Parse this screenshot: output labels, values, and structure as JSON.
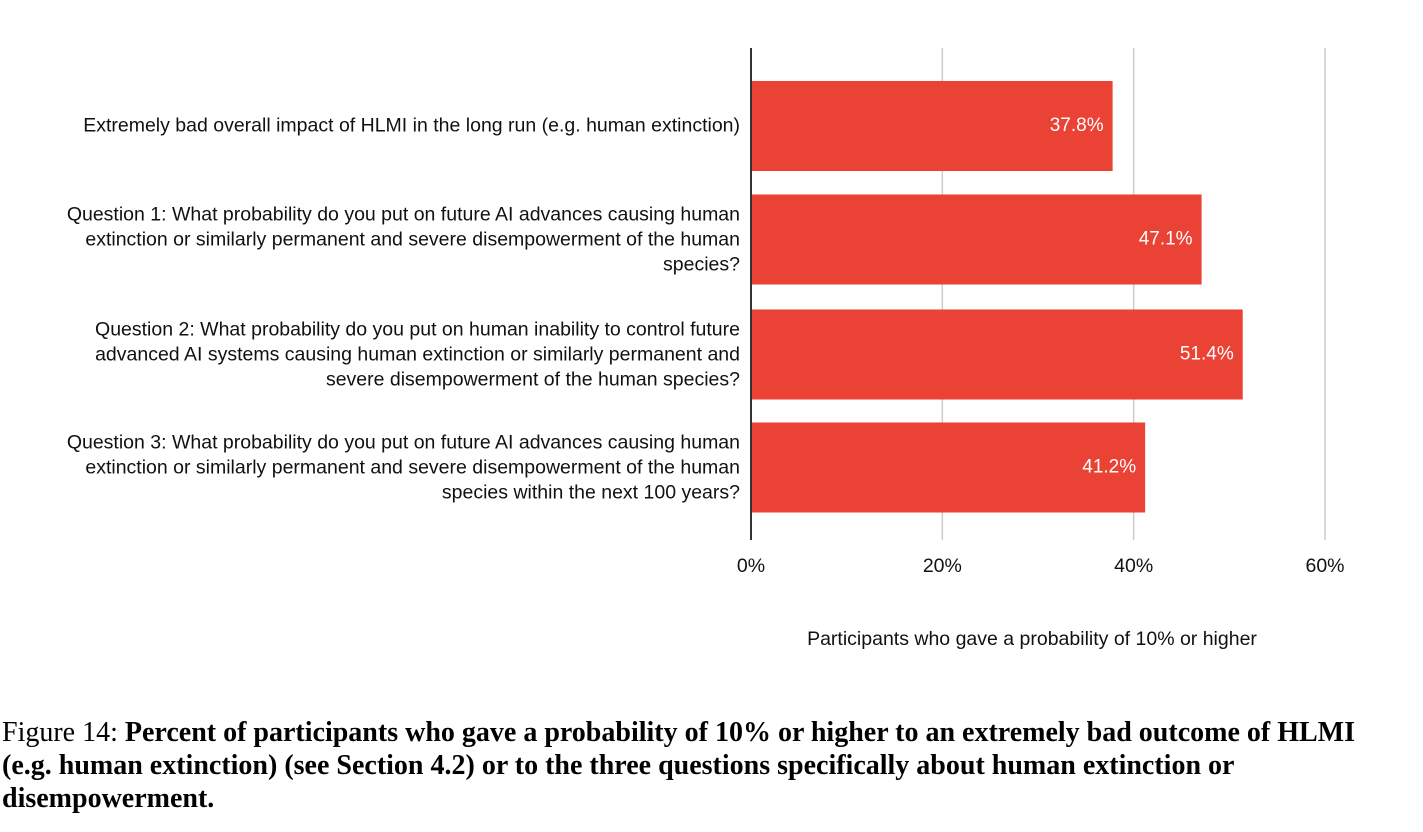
{
  "chart_data": {
    "type": "hbar",
    "categories": [
      "Extremely bad overall impact of HLMI in the long run (e.g. human extinction)",
      "Question 1: What probability do you put on future AI advances causing human extinction or similarly permanent and severe disempowerment of the human species?",
      "Question 2: What probability do you put on human inability to control future advanced AI systems causing human extinction or similarly permanent and severe disempowerment of the human species?",
      "Question 3: What probability do you put on future AI advances causing human extinction or similarly permanent and severe disempowerment of the human species within the next 100 years?"
    ],
    "values": [
      37.8,
      47.1,
      51.4,
      41.2
    ],
    "value_labels": [
      "37.8%",
      "47.1%",
      "51.4%",
      "41.2%"
    ],
    "color": "#ea4335",
    "xlim": [
      0,
      60
    ],
    "xticks": [
      {
        "value": 0,
        "label": "0%"
      },
      {
        "value": 20,
        "label": "20%"
      },
      {
        "value": 40,
        "label": "40%"
      },
      {
        "value": 60,
        "label": "60%"
      }
    ],
    "xlabel": "Participants who gave a probability of 10% or higher",
    "grid": true
  },
  "figure_caption": {
    "number": "Figure 14:",
    "text": "Percent of participants who gave a probability of 10% or higher to an extremely bad outcome of HLMI (e.g. human extinction) (see Section 4.2) or to the three questions specifically about human extinction or disempowerment."
  }
}
